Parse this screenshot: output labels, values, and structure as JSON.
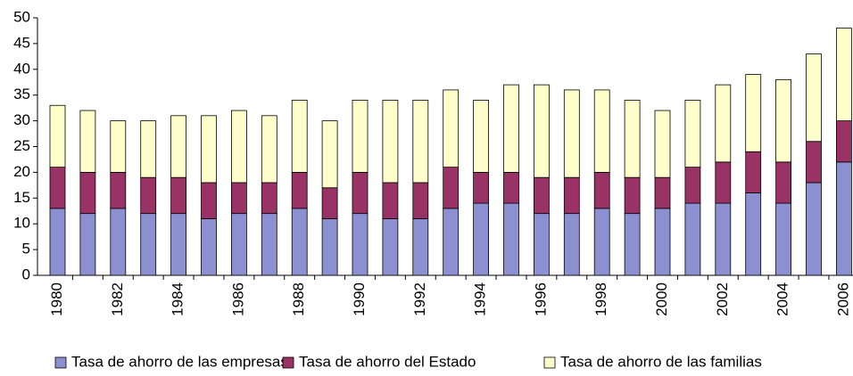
{
  "chart_data": {
    "type": "stacked_bar",
    "categories": [
      "1980",
      null,
      "1982",
      null,
      "1984",
      null,
      "1986",
      null,
      "1988",
      null,
      "1990",
      null,
      "1992",
      null,
      "1994",
      null,
      "1996",
      null,
      "1998",
      null,
      "2000",
      null,
      "2002",
      null,
      "2004",
      null,
      "2006"
    ],
    "series": [
      {
        "name": "Tasa de ahorro de las empresas",
        "color": "#8c8fd0",
        "values": [
          13,
          12,
          13,
          12,
          12,
          11,
          12,
          12,
          13,
          11,
          12,
          11,
          11,
          13,
          14,
          14,
          12,
          12,
          13,
          12,
          13,
          14,
          14,
          16,
          14,
          18,
          22
        ]
      },
      {
        "name": "Tasa de ahorro del Estado",
        "color": "#993366",
        "values": [
          8,
          8,
          7,
          7,
          7,
          7,
          6,
          6,
          7,
          6,
          8,
          7,
          7,
          8,
          6,
          6,
          7,
          7,
          7,
          7,
          6,
          7,
          8,
          8,
          8,
          8,
          8
        ]
      },
      {
        "name": "Tasa de ahorro de las familias",
        "color": "#ffffcc",
        "values": [
          12,
          12,
          10,
          11,
          12,
          13,
          14,
          13,
          14,
          13,
          14,
          16,
          16,
          15,
          14,
          17,
          18,
          17,
          16,
          15,
          13,
          13,
          15,
          15,
          16,
          17,
          18
        ]
      }
    ],
    "ylim": [
      0,
      50
    ],
    "yticks": [
      0,
      5,
      10,
      15,
      20,
      25,
      30,
      35,
      40,
      45,
      50
    ],
    "grid": false,
    "legend": "bottom"
  }
}
